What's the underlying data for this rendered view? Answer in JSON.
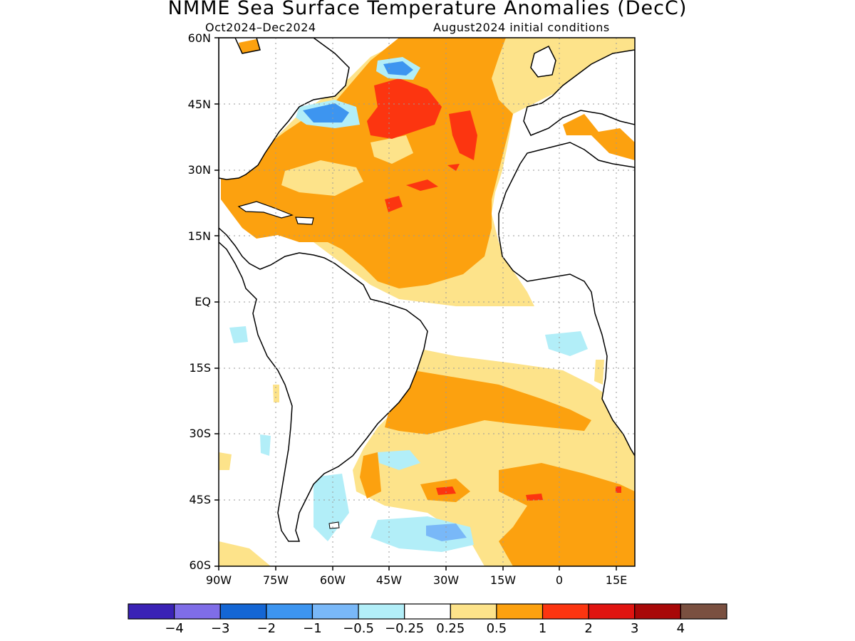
{
  "title": "NMME Sea Surface Temperature Anomalies (DecC)",
  "subtitle_left": "Oct2024–Dec2024",
  "subtitle_right": "August2024 initial conditions",
  "y_ticks": [
    "60N",
    "45N",
    "30N",
    "15N",
    "EQ",
    "15S",
    "30S",
    "45S",
    "60S"
  ],
  "x_ticks": [
    "90W",
    "75W",
    "60W",
    "45W",
    "30W",
    "15W",
    "0",
    "15E"
  ],
  "colorbar": {
    "colors": [
      "#3a22b5",
      "#7f6de8",
      "#1466d4",
      "#3d95f0",
      "#79b8f8",
      "#b2eef8",
      "#ffffff",
      "#fde38a",
      "#fca10f",
      "#fc3510",
      "#e01410",
      "#a80808",
      "#7a5040"
    ],
    "labels": [
      "−4",
      "−3",
      "−2",
      "−1",
      "−0.5",
      "−0.25",
      "0.25",
      "0.5",
      "1",
      "2",
      "3",
      "4"
    ]
  }
}
